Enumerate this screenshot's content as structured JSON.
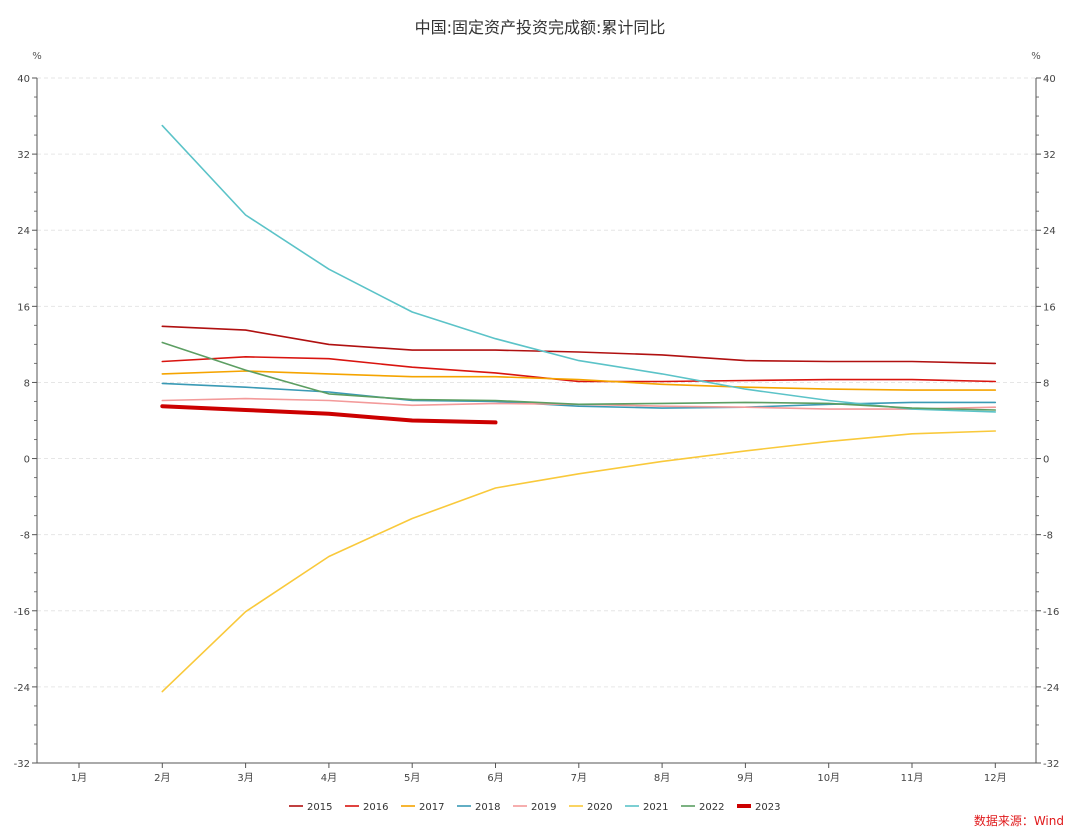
{
  "chart_data": {
    "type": "line",
    "title": "中国:固定资产投资完成额:累计同比",
    "y_unit_left": "%",
    "y_unit_right": "%",
    "categories": [
      "1月",
      "2月",
      "3月",
      "4月",
      "5月",
      "6月",
      "7月",
      "8月",
      "9月",
      "10月",
      "11月",
      "12月"
    ],
    "ylim": [
      -32,
      40
    ],
    "yticks": [
      40,
      32,
      24,
      16,
      8,
      0,
      -8,
      -16,
      -24,
      -32
    ],
    "grid": true,
    "legend_position": "bottom",
    "series": [
      {
        "name": "2015",
        "color": "#b01010",
        "width": 1.6,
        "values": [
          null,
          13.9,
          13.5,
          12.0,
          11.4,
          11.4,
          11.2,
          10.9,
          10.3,
          10.2,
          10.2,
          10.0
        ]
      },
      {
        "name": "2016",
        "color": "#d9140f",
        "width": 1.6,
        "values": [
          null,
          10.2,
          10.7,
          10.5,
          9.6,
          9.0,
          8.1,
          8.1,
          8.2,
          8.3,
          8.3,
          8.1
        ]
      },
      {
        "name": "2017",
        "color": "#f5a400",
        "width": 1.6,
        "values": [
          null,
          8.9,
          9.2,
          8.9,
          8.6,
          8.6,
          8.3,
          7.8,
          7.5,
          7.3,
          7.2,
          7.2
        ]
      },
      {
        "name": "2018",
        "color": "#3a9ab5",
        "width": 1.6,
        "values": [
          null,
          7.9,
          7.5,
          7.0,
          6.1,
          6.0,
          5.5,
          5.3,
          5.4,
          5.7,
          5.9,
          5.9
        ]
      },
      {
        "name": "2019",
        "color": "#f39a9a",
        "width": 1.6,
        "values": [
          null,
          6.1,
          6.3,
          6.1,
          5.6,
          5.8,
          5.7,
          5.5,
          5.4,
          5.2,
          5.2,
          5.4
        ]
      },
      {
        "name": "2020",
        "color": "#f9c93b",
        "width": 1.6,
        "values": [
          null,
          -24.5,
          -16.1,
          -10.3,
          -6.3,
          -3.1,
          -1.6,
          -0.3,
          0.8,
          1.8,
          2.6,
          2.9
        ]
      },
      {
        "name": "2021",
        "color": "#5bc3c8",
        "width": 1.6,
        "values": [
          null,
          35.0,
          25.6,
          19.9,
          15.4,
          12.6,
          10.3,
          8.9,
          7.3,
          6.1,
          5.2,
          4.9
        ]
      },
      {
        "name": "2022",
        "color": "#5c9e62",
        "width": 1.6,
        "values": [
          null,
          12.2,
          9.3,
          6.8,
          6.2,
          6.1,
          5.7,
          5.8,
          5.9,
          5.8,
          5.3,
          5.1
        ]
      },
      {
        "name": "2023",
        "color": "#cc0000",
        "width": 4,
        "values": [
          null,
          5.5,
          5.1,
          4.7,
          4.0,
          3.8,
          null,
          null,
          null,
          null,
          null,
          null
        ]
      }
    ]
  },
  "source_note": "数据来源：Wind"
}
